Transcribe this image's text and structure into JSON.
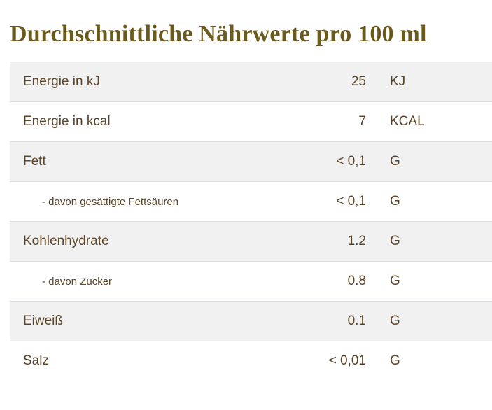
{
  "page": {
    "title": "Durchschnittliche Nährwerte pro 100 ml"
  },
  "table": {
    "rows": [
      {
        "label": "Energie in kJ",
        "value": "25",
        "unit": "KJ",
        "shaded": true,
        "sub": false
      },
      {
        "label": "Energie in kcal",
        "value": "7",
        "unit": "KCAL",
        "shaded": false,
        "sub": false
      },
      {
        "label": "Fett",
        "value": "< 0,1",
        "unit": "G",
        "shaded": true,
        "sub": false
      },
      {
        "label": "- davon gesättigte Fettsäuren",
        "value": "< 0,1",
        "unit": "G",
        "shaded": false,
        "sub": true
      },
      {
        "label": "Kohlenhydrate",
        "value": "1.2",
        "unit": "G",
        "shaded": true,
        "sub": false
      },
      {
        "label": "- davon Zucker",
        "value": "0.8",
        "unit": "G",
        "shaded": false,
        "sub": true
      },
      {
        "label": "Eiweiß",
        "value": "0.1",
        "unit": "G",
        "shaded": true,
        "sub": false
      },
      {
        "label": "Salz",
        "value": "< 0,01",
        "unit": "G",
        "shaded": false,
        "sub": false
      }
    ]
  },
  "colors": {
    "title_color": "#6b5a1e",
    "text_color": "#5a4428",
    "row_shaded_bg": "#f1f1f2",
    "row_border": "#dcdde2",
    "page_bg": "#ffffff"
  }
}
